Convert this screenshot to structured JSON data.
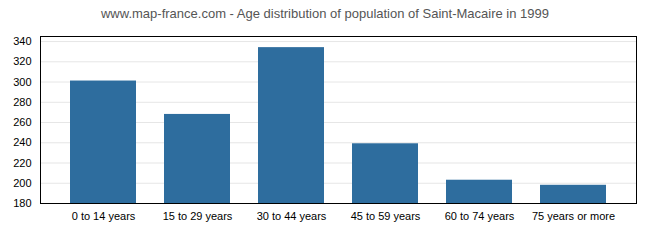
{
  "chart_data": {
    "type": "bar",
    "title": "www.map-france.com - Age distribution of population of Saint-Macaire in 1999",
    "categories": [
      "0 to 14 years",
      "15 to 29 years",
      "30 to 44 years",
      "45 to 59 years",
      "60 to 74 years",
      "75 years or more"
    ],
    "values": [
      301,
      268,
      334,
      239,
      203,
      198
    ],
    "color": "#2e6d9e",
    "ylim": [
      180,
      345
    ],
    "yticks": [
      180,
      200,
      220,
      240,
      260,
      280,
      300,
      320,
      340
    ],
    "grid": true
  }
}
